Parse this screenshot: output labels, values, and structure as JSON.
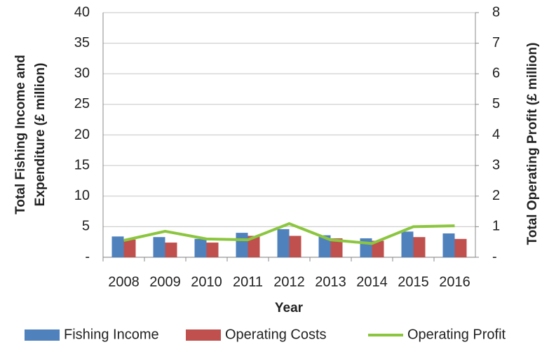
{
  "chart_data": {
    "type": "bar_line",
    "categories": [
      "2008",
      "2009",
      "2010",
      "2011",
      "2012",
      "2013",
      "2014",
      "2015",
      "2016"
    ],
    "series": [
      {
        "name": "Fishing Income",
        "color": "#4f81bd",
        "type": "bar",
        "values": [
          3.4,
          3.3,
          3.0,
          4.0,
          4.6,
          3.6,
          3.1,
          4.2,
          3.9
        ]
      },
      {
        "name": "Operating Costs",
        "color": "#c0504d",
        "type": "bar",
        "values": [
          2.9,
          2.4,
          2.4,
          3.5,
          3.5,
          3.1,
          2.7,
          3.3,
          3.0
        ]
      },
      {
        "name": "Operating Profit",
        "color": "#8cc63f",
        "type": "line",
        "axis": "y2",
        "values": [
          0.55,
          0.85,
          0.6,
          0.57,
          1.1,
          0.57,
          0.45,
          1.0,
          1.03
        ]
      }
    ],
    "xlabel": "Year",
    "ylabel": [
      "Total Fishing Income and",
      "Expenditure  (£ million)"
    ],
    "y2label": "Total Operating Profit (£ million)",
    "ylim": [
      0,
      40
    ],
    "yticks": [
      {
        "value": 0,
        "label": "-"
      },
      5,
      10,
      15,
      20,
      25,
      30,
      35,
      40
    ],
    "y2lim": [
      0,
      8
    ],
    "y2ticks": [
      {
        "value": 0,
        "label": "-"
      },
      1,
      2,
      3,
      4,
      5,
      6,
      7,
      8
    ],
    "grid": true,
    "legend": "bottom"
  }
}
